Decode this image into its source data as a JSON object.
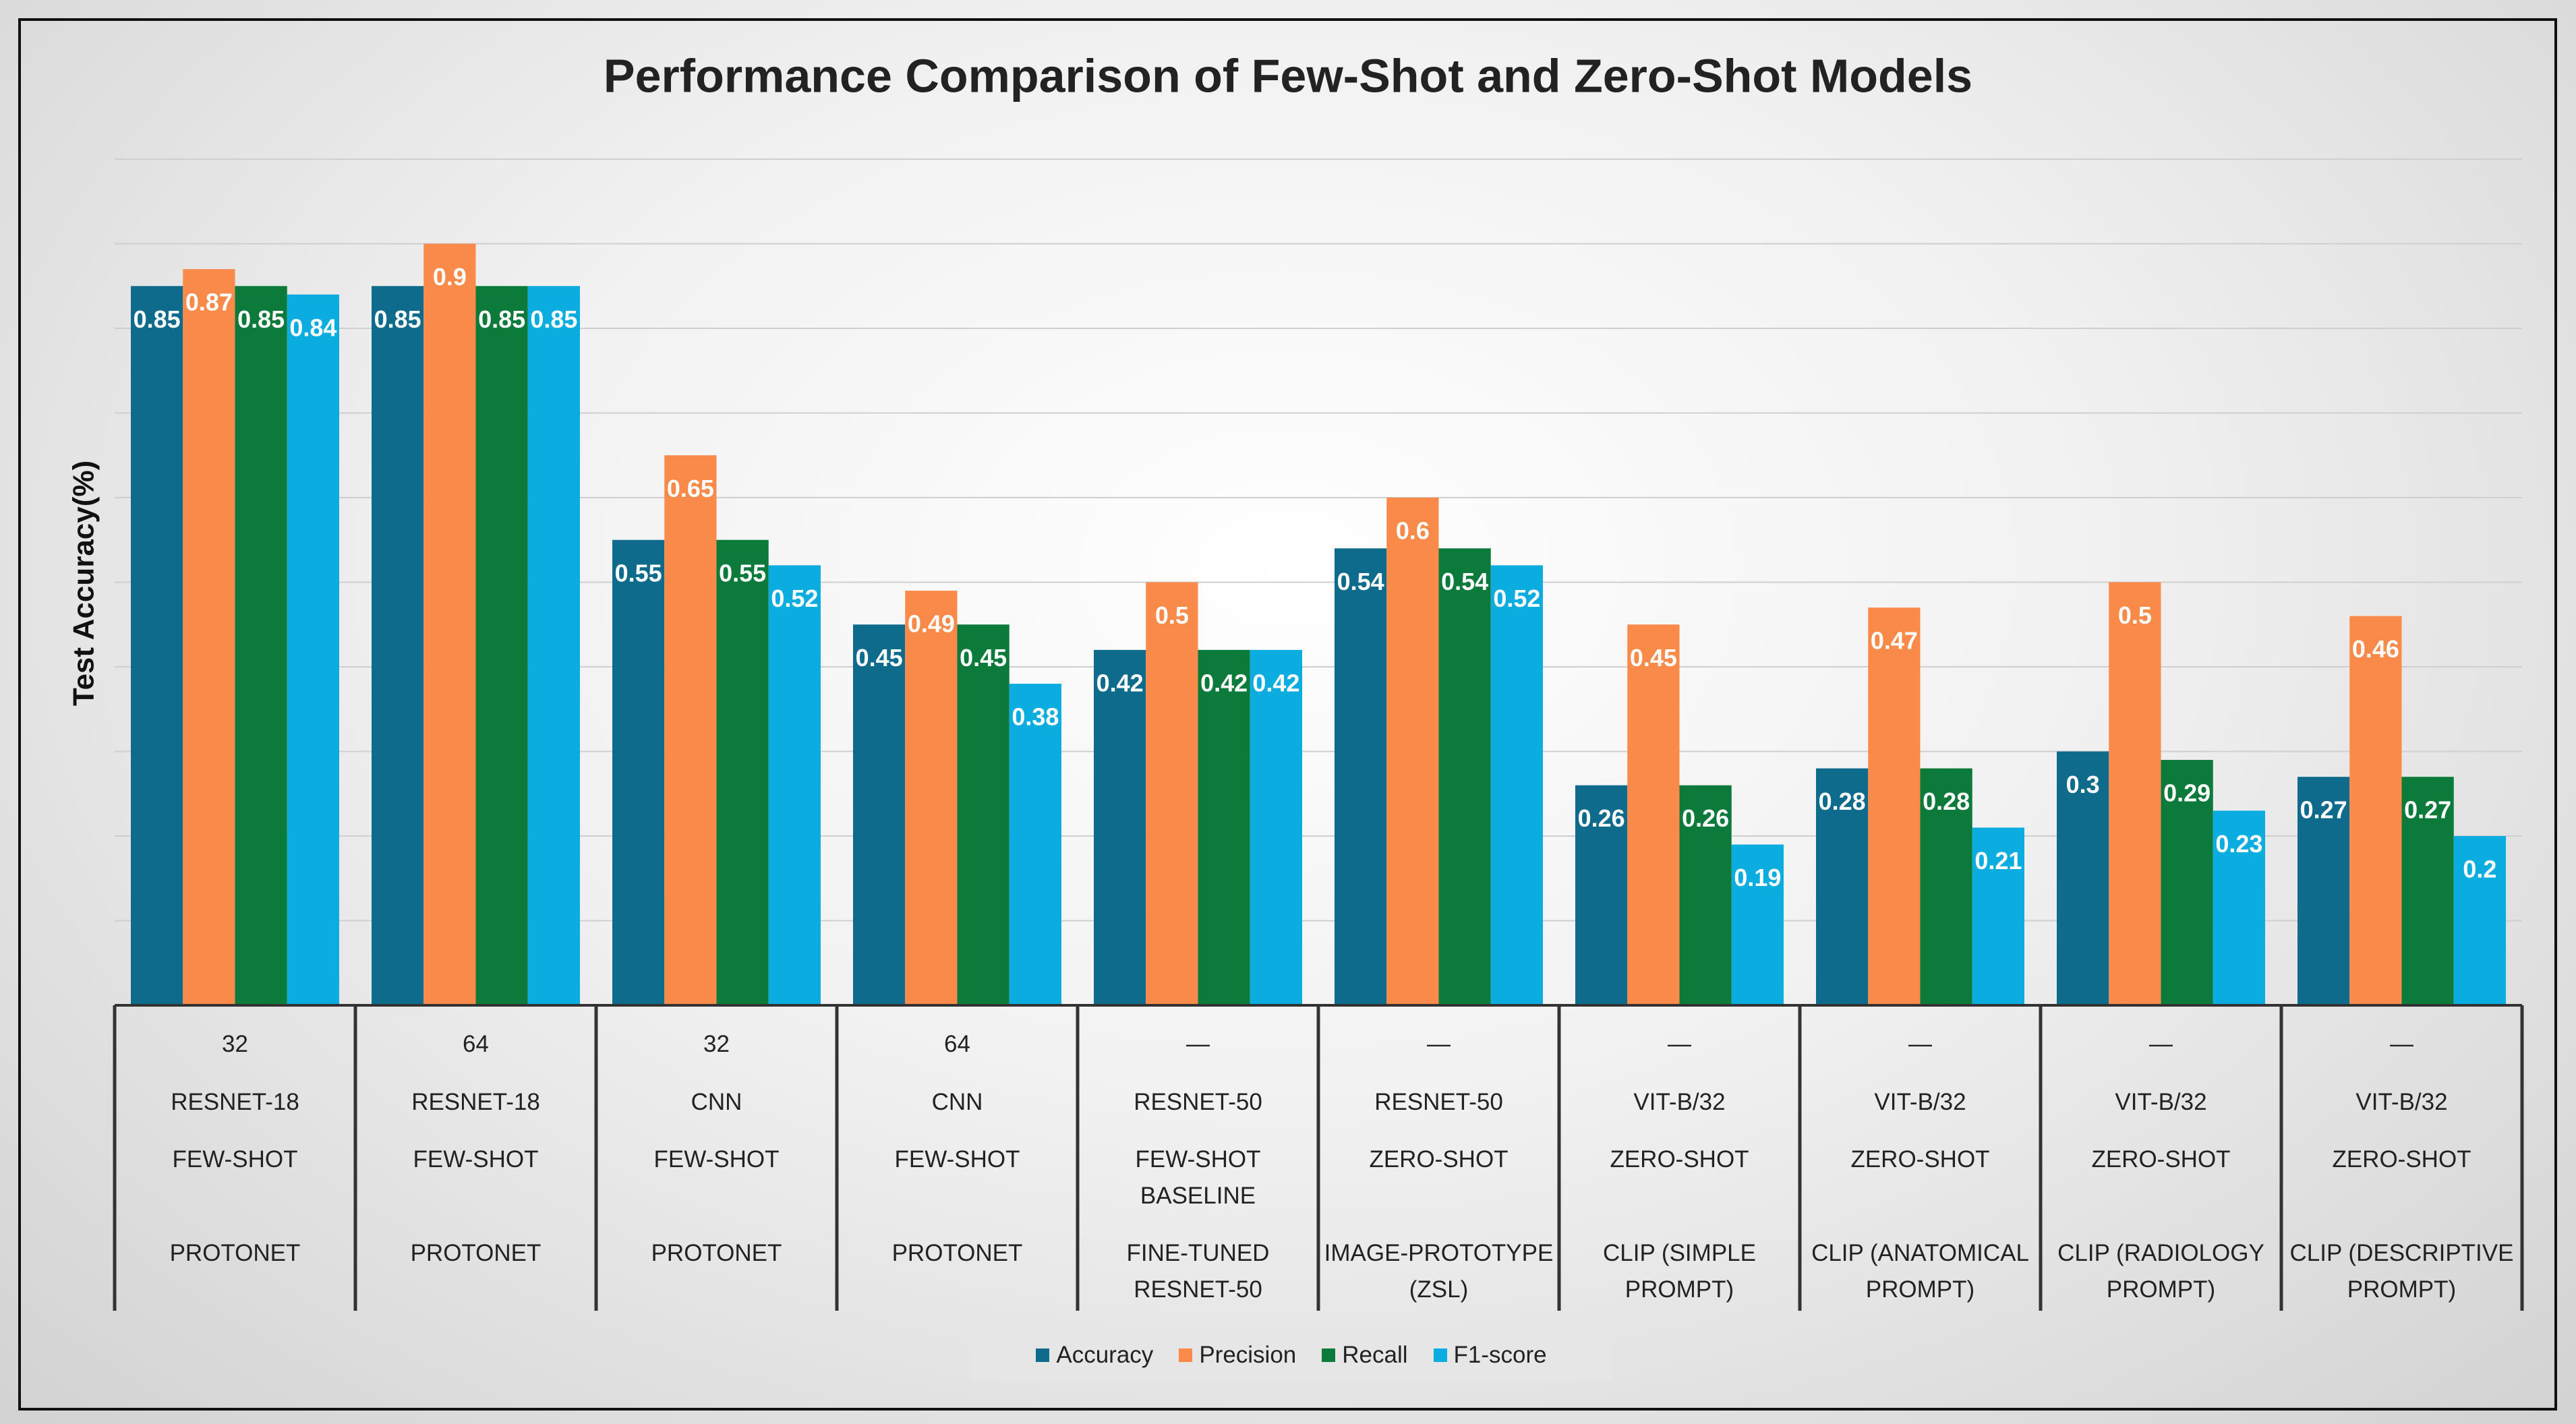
{
  "chart_data": {
    "type": "bar",
    "title": "Performance Comparison of Few-Shot and Zero-Shot Models",
    "y_label": "Test Accuracy(%)",
    "categories": [
      [
        "32",
        "RESNET-18",
        "FEW-SHOT",
        "PROTONET"
      ],
      [
        "64",
        "RESNET-18",
        "FEW-SHOT",
        "PROTONET"
      ],
      [
        "32",
        "CNN",
        "FEW-SHOT",
        "PROTONET"
      ],
      [
        "64",
        "CNN",
        "FEW-SHOT",
        "PROTONET"
      ],
      [
        "—",
        "RESNET-50",
        "FEW-SHOT BASELINE",
        "FINE-TUNED RESNET-50"
      ],
      [
        "—",
        "RESNET-50",
        "ZERO-SHOT",
        "IMAGE-PROTOTYPE (ZSL)"
      ],
      [
        "—",
        "VIT-B/32",
        "ZERO-SHOT",
        "CLIP (SIMPLE PROMPT)"
      ],
      [
        "—",
        "VIT-B/32",
        "ZERO-SHOT",
        "CLIP (ANATOMICAL PROMPT)"
      ],
      [
        "—",
        "VIT-B/32",
        "ZERO-SHOT",
        "CLIP (RADIOLOGY PROMPT)"
      ],
      [
        "—",
        "VIT-B/32",
        "ZERO-SHOT",
        "CLIP (DESCRIPTIVE PROMPT)"
      ]
    ],
    "series": [
      {
        "name": "Accuracy",
        "color": "#0f6b8c",
        "values": [
          0.85,
          0.85,
          0.55,
          0.45,
          0.42,
          0.54,
          0.26,
          0.28,
          0.3,
          0.27
        ]
      },
      {
        "name": "Precision",
        "color": "#fa8a4a",
        "values": [
          0.87,
          0.9,
          0.65,
          0.49,
          0.5,
          0.6,
          0.45,
          0.47,
          0.5,
          0.46
        ]
      },
      {
        "name": "Recall",
        "color": "#0b7a3a",
        "values": [
          0.85,
          0.85,
          0.55,
          0.45,
          0.42,
          0.54,
          0.26,
          0.28,
          0.29,
          0.27
        ]
      },
      {
        "name": "F1-score",
        "color": "#0bade0",
        "values": [
          0.84,
          0.85,
          0.52,
          0.38,
          0.42,
          0.52,
          0.19,
          0.21,
          0.23,
          0.2
        ]
      }
    ],
    "ylim": [
      0,
      1
    ],
    "yticks": [
      0.1,
      0.2,
      0.3,
      0.4,
      0.5,
      0.6,
      0.7,
      0.8,
      0.9,
      1
    ],
    "grid": true,
    "legend": "bottom"
  }
}
